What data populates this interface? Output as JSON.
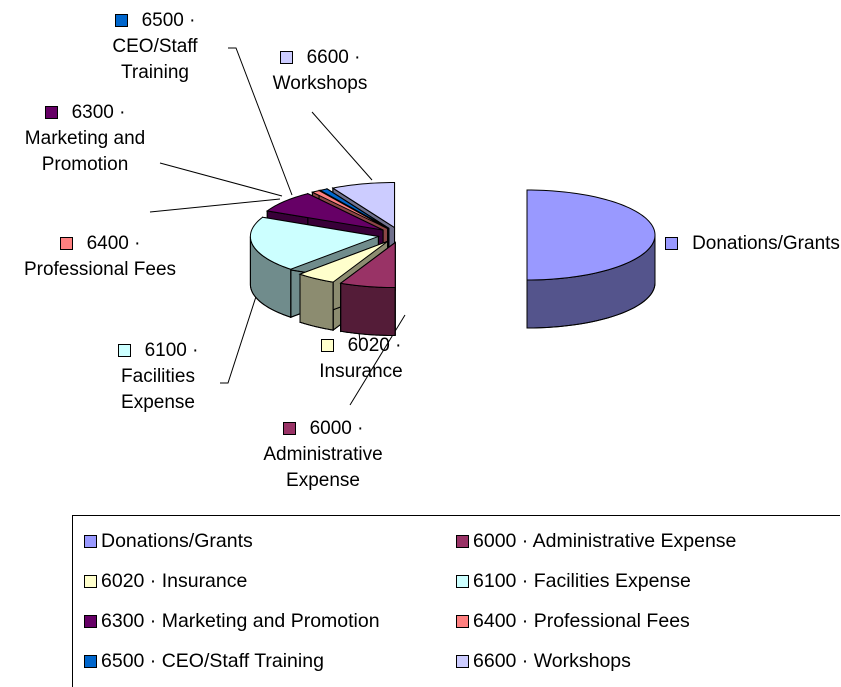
{
  "chart_data": {
    "type": "pie",
    "categories": [
      "Donations/Grants",
      "6000 · Administrative Expense",
      "6020 · Insurance",
      "6100 · Facilities Expense",
      "6300 · Marketing and Promotion",
      "6400 · Professional Fees",
      "6500 · CEO/Staff Training",
      "6600 · Workshops"
    ],
    "values": [
      50,
      7,
      5,
      20,
      8,
      1,
      1,
      8
    ],
    "colors": [
      "#9999ff",
      "#993366",
      "#ffffcc",
      "#ccffff",
      "#660066",
      "#ff8080",
      "#0066cc",
      "#ccccff"
    ],
    "legend": "bottom"
  }
}
